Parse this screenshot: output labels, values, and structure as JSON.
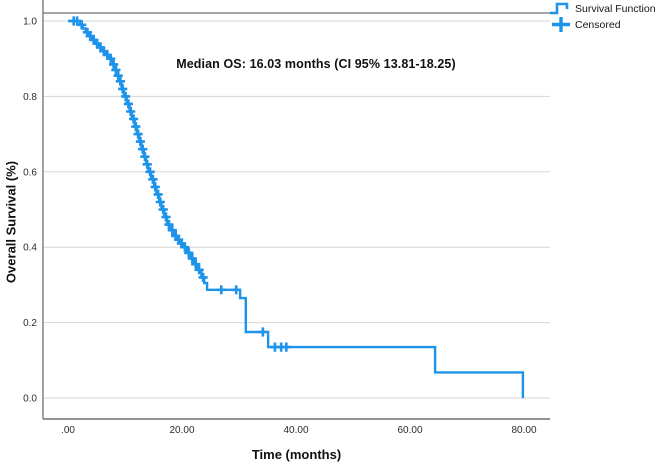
{
  "chart_data": {
    "type": "line",
    "subtype": "kaplan-meier-step-function",
    "title": "",
    "annotation": "Median OS: 16.03 months (CI 95% 13.81-18.25)",
    "xlabel": "Time (months)",
    "ylabel": "Overall Survival (%)",
    "xlim": [
      0,
      84.5
    ],
    "ylim": [
      0,
      1.02
    ],
    "grid": "horizontal",
    "x_ticks": [
      {
        "value": 0,
        "label": ".00"
      },
      {
        "value": 20,
        "label": "20.00"
      },
      {
        "value": 40,
        "label": "40.00"
      },
      {
        "value": 60,
        "label": "60.00"
      },
      {
        "value": 80,
        "label": "80.00"
      }
    ],
    "y_ticks": [
      {
        "value": 0.0,
        "label": "0.0"
      },
      {
        "value": 0.2,
        "label": "0.2"
      },
      {
        "value": 0.4,
        "label": "0.4"
      },
      {
        "value": 0.6,
        "label": "0.6"
      },
      {
        "value": 0.8,
        "label": "0.8"
      },
      {
        "value": 1.0,
        "label": "1.0"
      }
    ],
    "legend": {
      "position": "top-right",
      "entries": [
        {
          "label": "Survival Function",
          "marker": "step-line"
        },
        {
          "label": "Censored",
          "marker": "plus"
        }
      ]
    },
    "median_os_months": 16.03,
    "ci_95": [
      13.81,
      18.25
    ],
    "series": [
      {
        "name": "Survival Function",
        "color": "#1e93ea",
        "steps": [
          [
            2.1,
            0.99
          ],
          [
            2.6,
            0.98
          ],
          [
            3.1,
            0.97
          ],
          [
            3.6,
            0.96
          ],
          [
            4.2,
            0.95
          ],
          [
            4.8,
            0.94
          ],
          [
            5.4,
            0.93
          ],
          [
            6.0,
            0.92
          ],
          [
            6.6,
            0.91
          ],
          [
            7.2,
            0.9
          ],
          [
            7.7,
            0.885
          ],
          [
            8.2,
            0.87
          ],
          [
            8.6,
            0.855
          ],
          [
            9.0,
            0.84
          ],
          [
            9.4,
            0.82
          ],
          [
            9.8,
            0.8
          ],
          [
            10.3,
            0.78
          ],
          [
            10.8,
            0.76
          ],
          [
            11.2,
            0.74
          ],
          [
            11.7,
            0.72
          ],
          [
            12.1,
            0.7
          ],
          [
            12.5,
            0.68
          ],
          [
            12.9,
            0.66
          ],
          [
            13.3,
            0.64
          ],
          [
            13.7,
            0.62
          ],
          [
            14.1,
            0.6
          ],
          [
            14.6,
            0.58
          ],
          [
            15.1,
            0.56
          ],
          [
            15.5,
            0.54
          ],
          [
            16.0,
            0.52
          ],
          [
            16.4,
            0.5
          ],
          [
            16.9,
            0.48
          ],
          [
            17.4,
            0.46
          ],
          [
            18.0,
            0.445
          ],
          [
            18.6,
            0.43
          ],
          [
            19.1,
            0.42
          ],
          [
            19.6,
            0.41
          ],
          [
            20.1,
            0.4
          ],
          [
            20.8,
            0.385
          ],
          [
            21.5,
            0.37
          ],
          [
            22.1,
            0.355
          ],
          [
            22.7,
            0.34
          ],
          [
            23.4,
            0.32
          ],
          [
            23.9,
            0.305
          ],
          [
            24.4,
            0.287
          ],
          [
            30.2,
            0.265
          ],
          [
            31.2,
            0.175
          ],
          [
            35.1,
            0.135
          ],
          [
            64.4,
            0.068
          ],
          [
            79.8,
            0.0
          ]
        ]
      }
    ],
    "censored": [
      [
        1.0,
        1.0
      ],
      [
        1.6,
        1.0
      ],
      [
        2.4,
        0.99
      ],
      [
        3.4,
        0.97
      ],
      [
        3.9,
        0.96
      ],
      [
        4.5,
        0.95
      ],
      [
        5.1,
        0.94
      ],
      [
        5.7,
        0.93
      ],
      [
        6.3,
        0.92
      ],
      [
        6.9,
        0.91
      ],
      [
        7.5,
        0.9
      ],
      [
        8.0,
        0.885
      ],
      [
        8.4,
        0.87
      ],
      [
        8.8,
        0.855
      ],
      [
        9.2,
        0.84
      ],
      [
        9.6,
        0.82
      ],
      [
        10.1,
        0.8
      ],
      [
        10.6,
        0.78
      ],
      [
        11.0,
        0.76
      ],
      [
        11.5,
        0.74
      ],
      [
        11.9,
        0.72
      ],
      [
        12.3,
        0.7
      ],
      [
        12.7,
        0.68
      ],
      [
        13.1,
        0.66
      ],
      [
        13.5,
        0.64
      ],
      [
        13.9,
        0.62
      ],
      [
        14.4,
        0.6
      ],
      [
        14.9,
        0.58
      ],
      [
        15.3,
        0.56
      ],
      [
        15.8,
        0.54
      ],
      [
        16.2,
        0.52
      ],
      [
        16.7,
        0.5
      ],
      [
        17.2,
        0.48
      ],
      [
        17.7,
        0.46
      ],
      [
        18.3,
        0.445
      ],
      [
        18.9,
        0.43
      ],
      [
        19.4,
        0.42
      ],
      [
        19.9,
        0.41
      ],
      [
        20.5,
        0.4
      ],
      [
        21.2,
        0.385
      ],
      [
        21.8,
        0.37
      ],
      [
        22.4,
        0.355
      ],
      [
        23.0,
        0.34
      ],
      [
        23.7,
        0.32
      ],
      [
        26.9,
        0.287
      ],
      [
        29.5,
        0.287
      ],
      [
        34.2,
        0.175
      ],
      [
        36.3,
        0.135
      ],
      [
        37.4,
        0.135
      ],
      [
        38.3,
        0.135
      ]
    ],
    "colors": {
      "curve": "#1e93ea",
      "gridline": "#d6d6d6",
      "frame": "#6f6f6f",
      "tick_text": "#2d2d2d",
      "label_text": "#101010",
      "background": "#ffffff"
    }
  }
}
